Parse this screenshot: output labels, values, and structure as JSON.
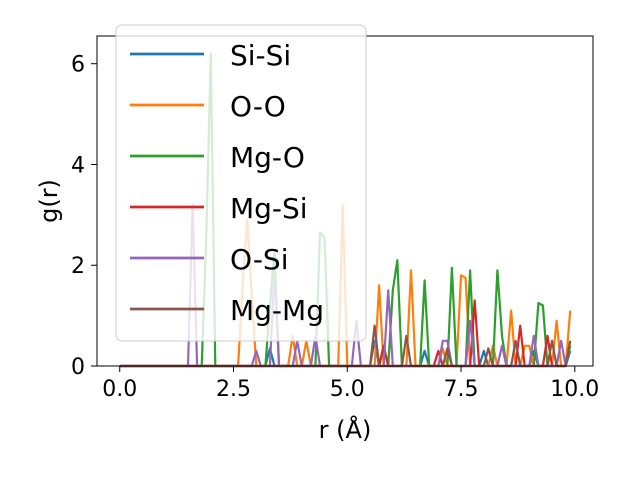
{
  "chart_data": {
    "type": "line",
    "xlabel": "r (Å)",
    "ylabel": "g(r)",
    "xlim": [
      -0.5,
      10.4
    ],
    "ylim": [
      0,
      6.55
    ],
    "xticks": [
      0.0,
      2.5,
      5.0,
      7.5,
      10.0
    ],
    "xtick_labels": [
      "0.0",
      "2.5",
      "5.0",
      "7.5",
      "10.0"
    ],
    "yticks": [
      0,
      2,
      4,
      6
    ],
    "ytick_labels": [
      "0",
      "2",
      "4",
      "6"
    ],
    "grid": false,
    "legend_position": "upper-left",
    "series": [
      {
        "name": "Si-Si",
        "color": "#1f77b4",
        "points": [
          [
            0,
            0
          ],
          [
            3.2,
            0
          ],
          [
            3.3,
            0.35
          ],
          [
            3.4,
            0
          ],
          [
            5.5,
            0
          ],
          [
            5.6,
            0.5
          ],
          [
            5.7,
            0
          ],
          [
            6.6,
            0
          ],
          [
            6.7,
            0.3
          ],
          [
            6.8,
            0
          ],
          [
            7.9,
            0
          ],
          [
            8.0,
            0.3
          ],
          [
            8.1,
            0
          ],
          [
            9.0,
            0
          ],
          [
            9.1,
            0.3
          ],
          [
            9.2,
            0
          ],
          [
            9.8,
            0
          ],
          [
            9.9,
            0.3
          ]
        ]
      },
      {
        "name": "O-O",
        "color": "#ff7f0e",
        "points": [
          [
            0,
            0
          ],
          [
            2.6,
            0
          ],
          [
            2.7,
            1.6
          ],
          [
            2.8,
            2.9
          ],
          [
            2.9,
            1.4
          ],
          [
            3.0,
            0
          ],
          [
            3.7,
            0
          ],
          [
            3.8,
            0.6
          ],
          [
            3.9,
            0
          ],
          [
            4.0,
            0
          ],
          [
            4.1,
            0.5
          ],
          [
            4.2,
            0
          ],
          [
            4.8,
            0
          ],
          [
            4.9,
            3.2
          ],
          [
            5.0,
            0
          ],
          [
            5.6,
            0
          ],
          [
            5.7,
            1.6
          ],
          [
            5.8,
            0
          ],
          [
            6.3,
            0
          ],
          [
            6.4,
            1.9
          ],
          [
            6.5,
            0
          ],
          [
            7.0,
            0
          ],
          [
            7.1,
            0.35
          ],
          [
            7.2,
            0
          ],
          [
            7.4,
            0
          ],
          [
            7.5,
            1.8
          ],
          [
            7.6,
            1.75
          ],
          [
            7.7,
            0
          ],
          [
            8.1,
            0
          ],
          [
            8.2,
            0.4
          ],
          [
            8.3,
            0
          ],
          [
            8.5,
            0
          ],
          [
            8.6,
            1.1
          ],
          [
            8.7,
            0
          ],
          [
            8.8,
            0
          ],
          [
            8.9,
            0.4
          ],
          [
            9.0,
            0.4
          ],
          [
            9.1,
            0
          ],
          [
            9.5,
            0
          ],
          [
            9.6,
            0.9
          ],
          [
            9.7,
            0
          ],
          [
            9.8,
            0
          ],
          [
            9.9,
            1.1
          ]
        ]
      },
      {
        "name": "Mg-O",
        "color": "#2ca02c",
        "points": [
          [
            0,
            0
          ],
          [
            1.8,
            0
          ],
          [
            1.9,
            2.5
          ],
          [
            2.0,
            6.2
          ],
          [
            2.1,
            0
          ],
          [
            3.2,
            0
          ],
          [
            3.3,
            1.2
          ],
          [
            3.4,
            2.3
          ],
          [
            3.5,
            0
          ],
          [
            4.3,
            0
          ],
          [
            4.4,
            2.65
          ],
          [
            4.5,
            2.55
          ],
          [
            4.6,
            0
          ],
          [
            5.7,
            0
          ],
          [
            5.8,
            0.4
          ],
          [
            5.9,
            0
          ],
          [
            6.0,
            1.5
          ],
          [
            6.1,
            2.1
          ],
          [
            6.2,
            0
          ],
          [
            6.6,
            0
          ],
          [
            6.7,
            1.7
          ],
          [
            6.8,
            0
          ],
          [
            7.2,
            0
          ],
          [
            7.3,
            1.95
          ],
          [
            7.4,
            0
          ],
          [
            7.6,
            0
          ],
          [
            7.7,
            1.9
          ],
          [
            7.8,
            0
          ],
          [
            8.2,
            0
          ],
          [
            8.3,
            1.9
          ],
          [
            8.4,
            0.6
          ],
          [
            8.5,
            0
          ],
          [
            9.1,
            0
          ],
          [
            9.2,
            1.25
          ],
          [
            9.3,
            1.2
          ],
          [
            9.4,
            0
          ],
          [
            9.8,
            0
          ],
          [
            9.9,
            0.4
          ]
        ]
      },
      {
        "name": "Mg-Si",
        "color": "#d62728",
        "points": [
          [
            0,
            0
          ],
          [
            5.7,
            0
          ],
          [
            5.8,
            0.4
          ],
          [
            5.9,
            0
          ],
          [
            6.9,
            0
          ],
          [
            7.0,
            0.3
          ],
          [
            7.1,
            0
          ],
          [
            7.7,
            0
          ],
          [
            7.8,
            1.3
          ],
          [
            7.9,
            0
          ],
          [
            8.7,
            0
          ],
          [
            8.8,
            0.8
          ],
          [
            8.9,
            0
          ],
          [
            9.3,
            0
          ],
          [
            9.4,
            0.6
          ],
          [
            9.5,
            0
          ],
          [
            9.8,
            0
          ],
          [
            9.9,
            0.5
          ]
        ]
      },
      {
        "name": "O-Si",
        "color": "#9467bd",
        "points": [
          [
            0,
            0
          ],
          [
            1.5,
            0
          ],
          [
            1.6,
            3.2
          ],
          [
            1.7,
            0
          ],
          [
            2.9,
            0
          ],
          [
            3.0,
            0.3
          ],
          [
            3.1,
            0
          ],
          [
            3.3,
            0
          ],
          [
            3.4,
            1.9
          ],
          [
            3.5,
            0
          ],
          [
            3.8,
            0
          ],
          [
            3.9,
            0.5
          ],
          [
            4.0,
            0
          ],
          [
            4.2,
            0
          ],
          [
            4.3,
            0.6
          ],
          [
            4.4,
            0
          ],
          [
            5.1,
            0
          ],
          [
            5.2,
            0.9
          ],
          [
            5.3,
            0
          ],
          [
            5.8,
            0
          ],
          [
            5.9,
            1.5
          ],
          [
            6.0,
            0
          ],
          [
            7.0,
            0
          ],
          [
            7.1,
            0.5
          ],
          [
            7.2,
            0.5
          ],
          [
            7.3,
            0
          ],
          [
            7.6,
            0
          ],
          [
            7.7,
            0.9
          ],
          [
            7.8,
            0
          ],
          [
            8.3,
            0
          ],
          [
            8.4,
            0.4
          ],
          [
            8.5,
            0
          ],
          [
            9.0,
            0
          ],
          [
            9.1,
            0.6
          ],
          [
            9.2,
            0
          ],
          [
            9.6,
            0
          ],
          [
            9.7,
            0.5
          ],
          [
            9.8,
            0
          ]
        ]
      },
      {
        "name": "Mg-Mg",
        "color": "#8c564b",
        "points": [
          [
            0,
            0
          ],
          [
            5.5,
            0
          ],
          [
            5.6,
            0.8
          ],
          [
            5.7,
            0
          ],
          [
            6.2,
            0
          ],
          [
            6.3,
            0.6
          ],
          [
            6.4,
            0
          ],
          [
            7.1,
            0
          ],
          [
            7.2,
            0.35
          ],
          [
            7.3,
            0
          ],
          [
            8.0,
            0
          ],
          [
            8.1,
            0.35
          ],
          [
            8.2,
            0
          ],
          [
            8.6,
            0
          ],
          [
            8.7,
            0.5
          ],
          [
            8.8,
            0
          ],
          [
            9.4,
            0
          ],
          [
            9.5,
            0.5
          ],
          [
            9.6,
            0
          ],
          [
            9.8,
            0
          ],
          [
            9.9,
            0.5
          ]
        ]
      }
    ]
  }
}
